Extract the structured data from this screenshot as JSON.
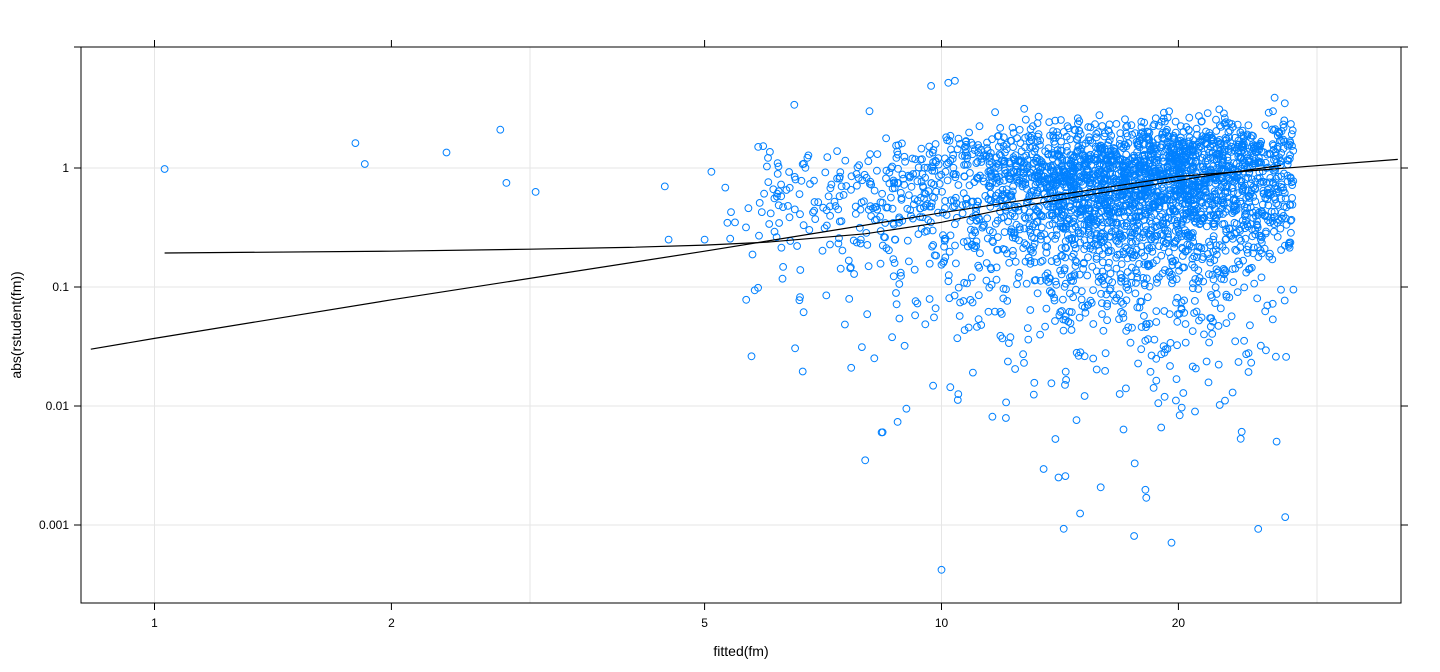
{
  "chart_data": {
    "type": "scatter",
    "title": "",
    "xlabel": "fitted(fm)",
    "ylabel": "abs(rstudent(fm))",
    "x_scale": "log",
    "y_scale": "log",
    "xlim": [
      0.83,
      38
    ],
    "ylim": [
      0.00019,
      11
    ],
    "x_ticks": [
      {
        "value": 1,
        "label": "1"
      },
      {
        "value": 2,
        "label": "2"
      },
      {
        "value": 5,
        "label": "5"
      },
      {
        "value": 10,
        "label": "10"
      },
      {
        "value": 20,
        "label": "20"
      }
    ],
    "y_ticks": [
      {
        "value": 0.001,
        "label": "0.001"
      },
      {
        "value": 0.01,
        "label": "0.01"
      },
      {
        "value": 0.1,
        "label": "0.1"
      },
      {
        "value": 1,
        "label": "1"
      }
    ],
    "grid": true,
    "legend": null,
    "point_color": "#0080ff",
    "line_color": "#000000",
    "grid_color": "#e6e6e6",
    "point_count_approx": 3000,
    "notable_points": [
      {
        "x": 1.03,
        "y": 0.98
      },
      {
        "x": 1.8,
        "y": 1.62
      },
      {
        "x": 1.85,
        "y": 1.08
      },
      {
        "x": 2.35,
        "y": 1.35
      },
      {
        "x": 2.75,
        "y": 2.1
      },
      {
        "x": 2.8,
        "y": 0.75
      },
      {
        "x": 3.05,
        "y": 0.63
      },
      {
        "x": 4.45,
        "y": 0.7
      },
      {
        "x": 4.5,
        "y": 0.25
      },
      {
        "x": 5.0,
        "y": 0.25
      },
      {
        "x": 5.1,
        "y": 0.93
      },
      {
        "x": 6.0,
        "y": 1.03
      },
      {
        "x": 6.5,
        "y": 3.4
      },
      {
        "x": 9.7,
        "y": 4.9
      },
      {
        "x": 10.2,
        "y": 5.2
      },
      {
        "x": 10.4,
        "y": 5.4
      },
      {
        "x": 8.1,
        "y": 3.0
      },
      {
        "x": 8.0,
        "y": 0.0035
      },
      {
        "x": 10.0,
        "y": 0.00042
      },
      {
        "x": 14.3,
        "y": 0.00093
      },
      {
        "x": 15.0,
        "y": 0.00125
      },
      {
        "x": 19.6,
        "y": 0.00071
      },
      {
        "x": 24.0,
        "y": 0.0053
      },
      {
        "x": 27.0,
        "y": 0.095
      },
      {
        "x": 26.5,
        "y": 3.9
      },
      {
        "x": 27.3,
        "y": 3.5
      }
    ],
    "cluster": {
      "x_range": [
        5.3,
        28
      ],
      "x_center": 17,
      "y_median": 0.7,
      "description": "dense cloud of residuals, heaviest between fitted 10 and 22"
    },
    "lines": [
      {
        "name": "loess-smooth",
        "points": [
          [
            1.03,
            0.193
          ],
          [
            2,
            0.2
          ],
          [
            3,
            0.208
          ],
          [
            4,
            0.215
          ],
          [
            5,
            0.225
          ],
          [
            6,
            0.238
          ],
          [
            8,
            0.28
          ],
          [
            10,
            0.35
          ],
          [
            12,
            0.45
          ],
          [
            15,
            0.58
          ],
          [
            18,
            0.7
          ],
          [
            22,
            0.87
          ],
          [
            27,
            1.05
          ]
        ]
      },
      {
        "name": "linear-fit",
        "points": [
          [
            0.83,
            0.03
          ],
          [
            1,
            0.037
          ],
          [
            2,
            0.078
          ],
          [
            5,
            0.2
          ],
          [
            10,
            0.42
          ],
          [
            20,
            0.85
          ],
          [
            38,
            1.18
          ]
        ]
      }
    ]
  }
}
